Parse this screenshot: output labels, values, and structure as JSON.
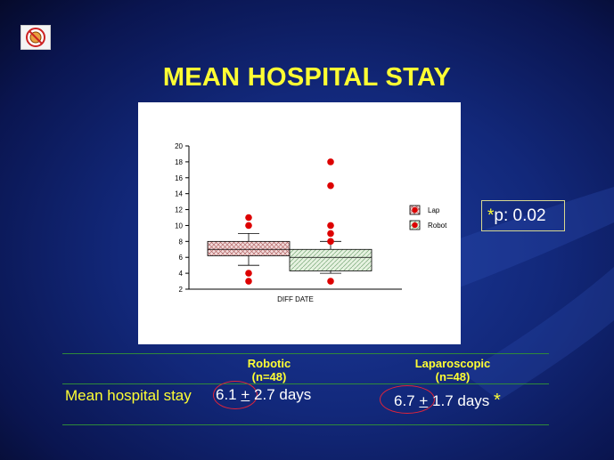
{
  "slide": {
    "title": "MEAN HOSPITAL STAY",
    "p_value": {
      "star": "*",
      "text": "p: 0.02"
    }
  },
  "chart_data": {
    "type": "box",
    "xlabel": "DIFF DATE",
    "ylabel": "",
    "ylim": [
      2,
      20
    ],
    "yticks": [
      2,
      4,
      6,
      8,
      10,
      12,
      14,
      16,
      18,
      20
    ],
    "legend_position": "right",
    "series": [
      {
        "name": "Lap",
        "color": "#c98a8a",
        "pattern": "crosshatch",
        "q1": 6.2,
        "median": 7.0,
        "q3": 8.0,
        "whisker_low": 5.0,
        "whisker_high": 9.0,
        "outliers": [
          3,
          4,
          10,
          11
        ]
      },
      {
        "name": "Robot",
        "color": "#8ab88a",
        "pattern": "diagonal",
        "q1": 4.3,
        "median": 6.0,
        "q3": 7.0,
        "whisker_low": 4.0,
        "whisker_high": 8.0,
        "outliers": [
          3,
          8,
          9,
          10,
          15,
          18
        ]
      }
    ],
    "outlier_color": "#dd0000"
  },
  "table": {
    "columns": [
      {
        "line1": "Robotic",
        "line2": "(n=48)"
      },
      {
        "line1": "Laparoscopic",
        "line2": "(n=48)"
      }
    ],
    "row": {
      "label": "Mean hospital stay",
      "robotic": {
        "mean": "6.1",
        "pm": "+",
        "rest": "2.7 days"
      },
      "laparoscopic": {
        "mean": "6.7",
        "pm": "+",
        "rest": "1.7 days",
        "star": "*"
      }
    }
  }
}
